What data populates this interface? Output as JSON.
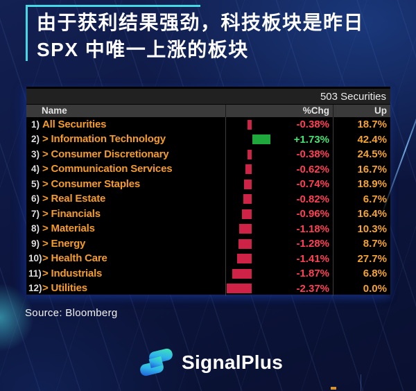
{
  "header": {
    "title_line1": "由于获利结果强劲，科技板块是昨日",
    "title_line2": "SPX 中唯一上涨的板块"
  },
  "table": {
    "securities_label": "503 Securities",
    "columns": {
      "name": "Name",
      "chg": "%Chg",
      "up": "Up"
    },
    "rows": [
      {
        "num": "1)",
        "name": "All Securities",
        "chg": -0.38,
        "chg_label": "-0.38%",
        "up_label": "18.7%"
      },
      {
        "num": "2)",
        "name": "> Information Technology",
        "chg": 1.73,
        "chg_label": "+1.73%",
        "up_label": "42.4%"
      },
      {
        "num": "3)",
        "name": "> Consumer Discretionary",
        "chg": -0.38,
        "chg_label": "-0.38%",
        "up_label": "24.5%"
      },
      {
        "num": "4)",
        "name": "> Communication Services",
        "chg": -0.62,
        "chg_label": "-0.62%",
        "up_label": "16.7%"
      },
      {
        "num": "5)",
        "name": "> Consumer Staples",
        "chg": -0.74,
        "chg_label": "-0.74%",
        "up_label": "18.9%"
      },
      {
        "num": "6)",
        "name": "> Real Estate",
        "chg": -0.82,
        "chg_label": "-0.82%",
        "up_label": "6.7%"
      },
      {
        "num": "7)",
        "name": "> Financials",
        "chg": -0.96,
        "chg_label": "-0.96%",
        "up_label": "16.4%"
      },
      {
        "num": "8)",
        "name": "> Materials",
        "chg": -1.18,
        "chg_label": "-1.18%",
        "up_label": "10.3%"
      },
      {
        "num": "9)",
        "name": "> Energy",
        "chg": -1.28,
        "chg_label": "-1.28%",
        "up_label": "8.7%"
      },
      {
        "num": "10)",
        "name": "> Health Care",
        "chg": -1.41,
        "chg_label": "-1.41%",
        "up_label": "27.7%"
      },
      {
        "num": "11)",
        "name": "> Industrials",
        "chg": -1.87,
        "chg_label": "-1.87%",
        "up_label": "6.8%"
      },
      {
        "num": "12)",
        "name": "> Utilities",
        "chg": -2.37,
        "chg_label": "-2.37%",
        "up_label": "0.0%"
      }
    ]
  },
  "source": "Source: Bloomberg",
  "brand": {
    "name": "SignalPlus"
  },
  "colors": {
    "accent_cyan": "#45d9e6",
    "name_amber": "#f59d28",
    "up_amber": "#f5a42c",
    "negative_text": "#ff4055",
    "positive_text": "#43e476",
    "bar_negative": "#cf2247",
    "bar_positive": "#1fa83c"
  },
  "chart_data": {
    "type": "bar",
    "orientation": "horizontal",
    "title": "503 Securities",
    "subtitle": "SPX sector performance, %Chg with Up share",
    "categories": [
      "All Securities",
      "Information Technology",
      "Consumer Discretionary",
      "Communication Services",
      "Consumer Staples",
      "Real Estate",
      "Financials",
      "Materials",
      "Energy",
      "Health Care",
      "Industrials",
      "Utilities"
    ],
    "series": [
      {
        "name": "%Chg",
        "values": [
          -0.38,
          1.73,
          -0.38,
          -0.62,
          -0.74,
          -0.82,
          -0.96,
          -1.18,
          -1.28,
          -1.41,
          -1.87,
          -2.37
        ]
      },
      {
        "name": "Up",
        "values": [
          18.7,
          42.4,
          24.5,
          16.7,
          18.9,
          6.7,
          16.4,
          10.3,
          8.7,
          27.7,
          6.8,
          0.0
        ]
      }
    ],
    "zero_line": true,
    "xlim": [
      -2.5,
      2.0
    ],
    "grid": false,
    "legend_position": "none",
    "negative_color": "#cf2247",
    "positive_color": "#1fa83c"
  }
}
